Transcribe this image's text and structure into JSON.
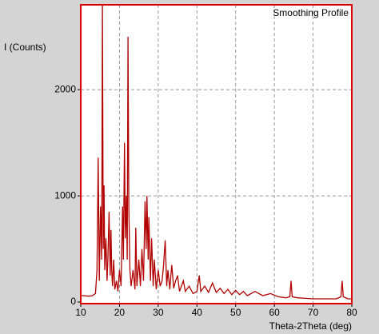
{
  "chart_data": {
    "type": "line",
    "title": "Smoothing Profile",
    "y_label": "I (Counts)",
    "x_label": "Theta-2Theta (deg)",
    "color": "#b00000",
    "frame_color": "#dd0000",
    "grid": true,
    "xlim": [
      10,
      80
    ],
    "ylim": [
      0,
      2800
    ],
    "xticks": [
      10,
      20,
      30,
      40,
      50,
      60,
      70,
      80
    ],
    "yticks": [
      0,
      1000,
      2000
    ],
    "x": [
      10,
      11,
      12,
      13,
      13.8,
      14.2,
      14.5,
      14.8,
      15.1,
      15.4,
      15.6,
      15.8,
      16.0,
      16.2,
      16.5,
      16.8,
      17.0,
      17.3,
      17.6,
      17.8,
      18.0,
      18.2,
      18.5,
      18.8,
      19.2,
      19.6,
      20.0,
      20.4,
      20.8,
      21.0,
      21.3,
      21.5,
      21.8,
      22.0,
      22.2,
      22.4,
      22.7,
      23.0,
      23.5,
      24.0,
      24.2,
      24.5,
      25.0,
      25.4,
      25.8,
      26.2,
      26.6,
      26.9,
      27.1,
      27.4,
      27.6,
      28.0,
      28.3,
      28.7,
      29.0,
      29.5,
      30.0,
      30.5,
      31.0,
      31.4,
      31.8,
      32.2,
      32.5,
      33.0,
      33.5,
      34.0,
      34.5,
      35.0,
      35.5,
      36.0,
      36.5,
      37.0,
      38.0,
      39.0,
      40.0,
      40.6,
      41.0,
      42.0,
      43.0,
      44.0,
      45.0,
      46.0,
      47.0,
      48.0,
      49.0,
      50.0,
      51.0,
      52.0,
      53.0,
      55.0,
      57.0,
      59.0,
      61.0,
      63.0,
      64.0,
      64.3,
      64.6,
      66.0,
      68.0,
      70.0,
      72.0,
      74.0,
      76.0,
      77.2,
      77.5,
      77.8,
      79.0,
      80.0
    ],
    "values": [
      60,
      60,
      55,
      60,
      80,
      300,
      1360,
      200,
      900,
      400,
      2800,
      500,
      1100,
      300,
      600,
      200,
      400,
      850,
      250,
      680,
      300,
      150,
      400,
      120,
      200,
      100,
      300,
      150,
      900,
      400,
      1500,
      600,
      1000,
      400,
      2500,
      900,
      300,
      150,
      300,
      120,
      700,
      150,
      400,
      150,
      500,
      200,
      950,
      500,
      1000,
      400,
      800,
      200,
      600,
      150,
      400,
      120,
      300,
      150,
      200,
      350,
      580,
      150,
      300,
      120,
      350,
      130,
      200,
      250,
      100,
      150,
      200,
      100,
      150,
      80,
      100,
      250,
      100,
      150,
      90,
      180,
      90,
      130,
      80,
      120,
      70,
      110,
      70,
      100,
      60,
      100,
      60,
      80,
      50,
      40,
      50,
      200,
      50,
      40,
      35,
      30,
      30,
      30,
      30,
      50,
      200,
      50,
      30,
      30
    ]
  }
}
